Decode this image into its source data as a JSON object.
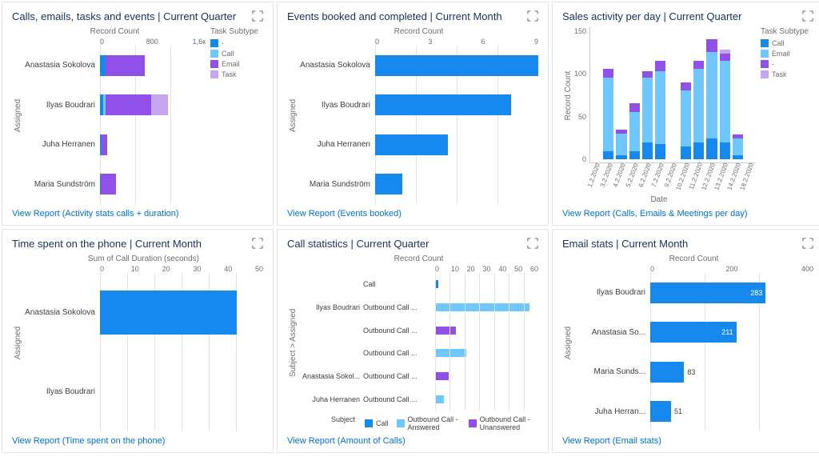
{
  "colors": {
    "blue": "#1589ee",
    "lightblue": "#6ec8ff",
    "purple": "#9050e9",
    "lightpurple": "#c6a5f0",
    "link": "#0070d2",
    "text_muted": "#706e6b",
    "grid": "#e5e5e5"
  },
  "card1": {
    "title": "Calls, emails, tasks and events | Current Quarter",
    "x_axis_label": "Record Count",
    "y_axis_label": "Assigned",
    "x_ticks": [
      "0",
      "800",
      "1,6к"
    ],
    "x_max": 1600,
    "legend_title": "Task Subtype",
    "legend": [
      {
        "label": "-",
        "color": "#1589ee"
      },
      {
        "label": "Call",
        "color": "#6ec8ff"
      },
      {
        "label": "Email",
        "color": "#9050e9"
      },
      {
        "label": "Task",
        "color": "#c6a5f0"
      }
    ],
    "rows": [
      {
        "name": "Anastasia Sokolova",
        "segs": [
          {
            "v": 80,
            "c": "#1589ee"
          },
          {
            "v": 600,
            "c": "#9050e9"
          }
        ]
      },
      {
        "name": "Ilyas Boudrari",
        "segs": [
          {
            "v": 50,
            "c": "#1589ee"
          },
          {
            "v": 30,
            "c": "#6ec8ff"
          },
          {
            "v": 700,
            "c": "#9050e9"
          },
          {
            "v": 250,
            "c": "#c6a5f0"
          }
        ]
      },
      {
        "name": "Juha Herranen",
        "segs": [
          {
            "v": 20,
            "c": "#1589ee"
          },
          {
            "v": 90,
            "c": "#9050e9"
          }
        ]
      },
      {
        "name": "Maria Sundström",
        "segs": [
          {
            "v": 10,
            "c": "#1589ee"
          },
          {
            "v": 230,
            "c": "#9050e9"
          }
        ]
      }
    ],
    "report_link": "View Report (Activity stats calls + duration)"
  },
  "card2": {
    "title": "Events booked and completed | Current Month",
    "x_axis_label": "Record Count",
    "y_axis_label": "Assigned",
    "x_ticks": [
      "0",
      "3",
      "6",
      "9"
    ],
    "x_max": 9,
    "bar_color": "#1589ee",
    "rows": [
      {
        "name": "Anastasia Sokolova",
        "v": 9
      },
      {
        "name": "Ilyas Boudrari",
        "v": 7.5
      },
      {
        "name": "Juha Herranen",
        "v": 4
      },
      {
        "name": "Maria Sundström",
        "v": 1.5
      }
    ],
    "report_link": "View Report (Events booked)"
  },
  "card3": {
    "title": "Sales activity per day | Current Quarter",
    "y_axis_label": "Record Count",
    "x_axis_label": "Date",
    "y_ticks": [
      "0",
      "50",
      "100",
      "150"
    ],
    "y_max": 150,
    "x_ticks": [
      "1.2.2020",
      "3.2.2020",
      "4.2.2020",
      "5.2.2020",
      "6.2.2020",
      "7.2.2020",
      "9.2.2020",
      "10.2.2020",
      "11.2.2020",
      "12.2.2020",
      "13.2.2020",
      "14.2.2020",
      "18.2.2020"
    ],
    "legend_title": "Task Subtype",
    "legend": [
      {
        "label": "Call",
        "color": "#1589ee"
      },
      {
        "label": "Email",
        "color": "#6ec8ff"
      },
      {
        "label": "-",
        "color": "#9050e9"
      },
      {
        "label": "Task",
        "color": "#c6a5f0"
      }
    ],
    "bars": [
      {
        "segs": [
          {
            "v": 0,
            "c": "#1589ee"
          }
        ]
      },
      {
        "segs": [
          {
            "v": 10,
            "c": "#1589ee"
          },
          {
            "v": 85,
            "c": "#6ec8ff"
          },
          {
            "v": 10,
            "c": "#9050e9"
          }
        ]
      },
      {
        "segs": [
          {
            "v": 5,
            "c": "#1589ee"
          },
          {
            "v": 25,
            "c": "#6ec8ff"
          },
          {
            "v": 5,
            "c": "#9050e9"
          }
        ]
      },
      {
        "segs": [
          {
            "v": 10,
            "c": "#1589ee"
          },
          {
            "v": 45,
            "c": "#6ec8ff"
          },
          {
            "v": 10,
            "c": "#9050e9"
          }
        ]
      },
      {
        "segs": [
          {
            "v": 20,
            "c": "#1589ee"
          },
          {
            "v": 75,
            "c": "#6ec8ff"
          },
          {
            "v": 8,
            "c": "#9050e9"
          }
        ]
      },
      {
        "segs": [
          {
            "v": 18,
            "c": "#1589ee"
          },
          {
            "v": 85,
            "c": "#6ec8ff"
          },
          {
            "v": 12,
            "c": "#9050e9"
          }
        ]
      },
      {
        "segs": [
          {
            "v": 0,
            "c": "#1589ee"
          }
        ]
      },
      {
        "segs": [
          {
            "v": 15,
            "c": "#1589ee"
          },
          {
            "v": 65,
            "c": "#6ec8ff"
          },
          {
            "v": 10,
            "c": "#9050e9"
          }
        ]
      },
      {
        "segs": [
          {
            "v": 20,
            "c": "#1589ee"
          },
          {
            "v": 85,
            "c": "#6ec8ff"
          },
          {
            "v": 10,
            "c": "#9050e9"
          }
        ]
      },
      {
        "segs": [
          {
            "v": 25,
            "c": "#1589ee"
          },
          {
            "v": 100,
            "c": "#6ec8ff"
          },
          {
            "v": 15,
            "c": "#9050e9"
          }
        ]
      },
      {
        "segs": [
          {
            "v": 20,
            "c": "#1589ee"
          },
          {
            "v": 95,
            "c": "#6ec8ff"
          },
          {
            "v": 8,
            "c": "#9050e9"
          },
          {
            "v": 5,
            "c": "#c6a5f0"
          }
        ]
      },
      {
        "segs": [
          {
            "v": 5,
            "c": "#1589ee"
          },
          {
            "v": 20,
            "c": "#6ec8ff"
          },
          {
            "v": 4,
            "c": "#9050e9"
          }
        ]
      },
      {
        "segs": [
          {
            "v": 0,
            "c": "#1589ee"
          }
        ]
      }
    ],
    "report_link": "View Report (Calls, Emails & Meetings per day)"
  },
  "card4": {
    "title": "Time spent on the phone | Current Month",
    "x_axis_label": "Sum of Call Duration (seconds)",
    "y_axis_label": "Assigned",
    "x_ticks": [
      "0",
      "10",
      "20",
      "30",
      "40",
      "50"
    ],
    "x_max": 50,
    "bar_color": "#1589ee",
    "rows": [
      {
        "name": "Anastasia Sokolova",
        "v": 42
      },
      {
        "name": "Ilyas Boudrari",
        "v": 0
      }
    ],
    "report_link": "View Report (Time spent on the phone)"
  },
  "card5": {
    "title": "Call statistics | Current Quarter",
    "x_axis_label": "Record Count",
    "y_axis_label": "Subject > Assigned",
    "x_ticks": [
      "0",
      "10",
      "20",
      "30",
      "40",
      "50",
      "60"
    ],
    "x_max": 60,
    "legend_label": "Subject",
    "legend": [
      {
        "label": "Call",
        "color": "#1589ee"
      },
      {
        "label": "Outbound Call - Answered",
        "color": "#6ec8ff"
      },
      {
        "label": "Outbound Call - Unanswered",
        "color": "#9050e9"
      }
    ],
    "groups": [
      {
        "name": "Ilyas Boudrari",
        "subs": [
          {
            "label": "Call",
            "v": 2,
            "c": "#1589ee"
          },
          {
            "label": "Outbound Call ...",
            "v": 55,
            "c": "#6ec8ff"
          },
          {
            "label": "Outbound Call ...",
            "v": 12,
            "c": "#9050e9"
          }
        ]
      },
      {
        "name": "Anastasia Sokol...",
        "subs": [
          {
            "label": "Outbound Call ...",
            "v": 18,
            "c": "#6ec8ff"
          },
          {
            "label": "Outbound Call ...",
            "v": 8,
            "c": "#9050e9"
          }
        ]
      },
      {
        "name": "Juha Herranen",
        "subs": [
          {
            "label": "Outbound Call ...",
            "v": 5,
            "c": "#6ec8ff"
          }
        ]
      }
    ],
    "report_link": "View Report (Amount of Calls)"
  },
  "card6": {
    "title": "Email stats | Current Month",
    "x_axis_label": "Record Count",
    "y_axis_label": "Assigned",
    "x_ticks": [
      "0",
      "200",
      "400"
    ],
    "x_max": 400,
    "bar_color": "#1589ee",
    "rows": [
      {
        "name": "Ilyas Boudrari",
        "v": 283,
        "label": "283"
      },
      {
        "name": "Anastasia So...",
        "v": 211,
        "label": "211"
      },
      {
        "name": "Maria Sunds...",
        "v": 83,
        "label": "83"
      },
      {
        "name": "Juha Herran...",
        "v": 51,
        "label": "51"
      }
    ],
    "report_link": "View Report (Email stats)"
  }
}
